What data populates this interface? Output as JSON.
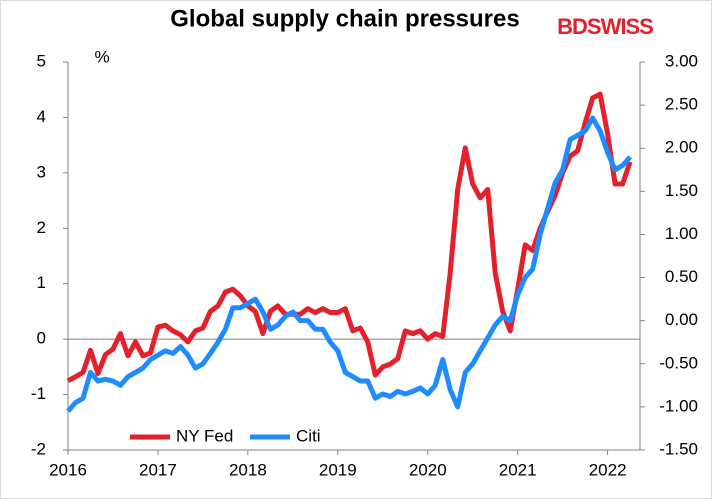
{
  "chart_data": {
    "type": "line",
    "title": "Global supply chain pressures",
    "y_unit": "%",
    "logo": "BDSWISS",
    "x": [
      2016.0,
      2016.083,
      2016.167,
      2016.25,
      2016.333,
      2016.417,
      2016.5,
      2016.583,
      2016.667,
      2016.75,
      2016.833,
      2016.917,
      2017.0,
      2017.083,
      2017.167,
      2017.25,
      2017.333,
      2017.417,
      2017.5,
      2017.583,
      2017.667,
      2017.75,
      2017.833,
      2017.917,
      2018.0,
      2018.083,
      2018.167,
      2018.25,
      2018.333,
      2018.417,
      2018.5,
      2018.583,
      2018.667,
      2018.75,
      2018.833,
      2018.917,
      2019.0,
      2019.083,
      2019.167,
      2019.25,
      2019.333,
      2019.417,
      2019.5,
      2019.583,
      2019.667,
      2019.75,
      2019.833,
      2019.917,
      2020.0,
      2020.083,
      2020.167,
      2020.25,
      2020.333,
      2020.417,
      2020.5,
      2020.583,
      2020.667,
      2020.75,
      2020.833,
      2020.917,
      2021.0,
      2021.083,
      2021.167,
      2021.25,
      2021.333,
      2021.417,
      2021.5,
      2021.583,
      2021.667,
      2021.75,
      2021.833,
      2021.917,
      2022.0,
      2022.083,
      2022.167,
      2022.25
    ],
    "series": [
      {
        "name": "NY Fed",
        "color": "#e3202b",
        "axis": "y",
        "values": [
          -0.75,
          -0.68,
          -0.6,
          -0.2,
          -0.62,
          -0.28,
          -0.18,
          0.1,
          -0.3,
          -0.05,
          -0.3,
          -0.25,
          0.22,
          0.25,
          0.15,
          0.08,
          -0.05,
          0.15,
          0.2,
          0.5,
          0.6,
          0.85,
          0.9,
          0.78,
          0.6,
          0.5,
          0.1,
          0.5,
          0.6,
          0.45,
          0.45,
          0.45,
          0.55,
          0.48,
          0.55,
          0.48,
          0.48,
          0.55,
          0.15,
          0.2,
          -0.05,
          -0.65,
          -0.5,
          -0.45,
          -0.35,
          0.15,
          0.1,
          0.15,
          0.0,
          0.1,
          0.05,
          1.2,
          2.7,
          3.45,
          2.8,
          2.55,
          2.7,
          1.2,
          0.5,
          0.15,
          0.9,
          1.7,
          1.6,
          2.0,
          2.3,
          2.6,
          3.0,
          3.3,
          3.4,
          3.9,
          4.35,
          4.42,
          3.7,
          2.8,
          2.8,
          3.2
        ]
      },
      {
        "name": "Citi",
        "color": "#1e8cff",
        "axis": "y2",
        "values": [
          -1.05,
          -0.95,
          -0.9,
          -0.6,
          -0.7,
          -0.68,
          -0.7,
          -0.75,
          -0.65,
          -0.6,
          -0.55,
          -0.45,
          -0.4,
          -0.35,
          -0.38,
          -0.3,
          -0.4,
          -0.55,
          -0.5,
          -0.38,
          -0.25,
          -0.1,
          0.15,
          0.15,
          0.2,
          0.25,
          0.1,
          -0.1,
          -0.05,
          0.05,
          0.1,
          0.0,
          0.0,
          -0.1,
          -0.1,
          -0.25,
          -0.35,
          -0.6,
          -0.65,
          -0.7,
          -0.7,
          -0.9,
          -0.85,
          -0.88,
          -0.82,
          -0.85,
          -0.82,
          -0.78,
          -0.85,
          -0.75,
          -0.45,
          -0.8,
          -1.0,
          -0.6,
          -0.5,
          -0.35,
          -0.2,
          -0.05,
          0.05,
          0.0,
          0.3,
          0.5,
          0.6,
          1.0,
          1.3,
          1.6,
          1.75,
          2.1,
          2.15,
          2.2,
          2.35,
          2.2,
          1.95,
          1.75,
          1.8,
          1.9
        ]
      }
    ],
    "xlim": [
      2016,
      2022.36
    ],
    "xticks": [
      2016,
      2017,
      2018,
      2019,
      2020,
      2021,
      2022
    ],
    "ylim": [
      -2,
      5
    ],
    "yticks": [
      -2,
      -1,
      0,
      1,
      2,
      3,
      4,
      5
    ],
    "y2lim": [
      -1.5,
      3
    ],
    "y2ticks": [
      {
        "value": -1.5,
        "label": "-1.50"
      },
      {
        "value": -1,
        "label": "-1.00"
      },
      {
        "value": -0.5,
        "label": "-0.50"
      },
      {
        "value": 0,
        "label": "0.00"
      },
      {
        "value": 0.5,
        "label": "0.50"
      },
      {
        "value": 1,
        "label": "1.00"
      },
      {
        "value": 1.5,
        "label": "1.50"
      },
      {
        "value": 2,
        "label": "2.00"
      },
      {
        "value": 2.5,
        "label": "2.50"
      },
      {
        "value": 3,
        "label": "3.00"
      }
    ],
    "legend": "bottom-left"
  }
}
